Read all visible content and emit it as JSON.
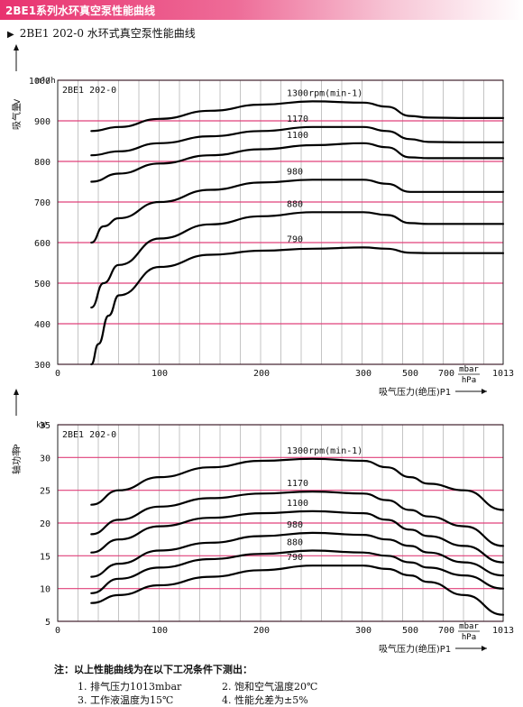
{
  "header": {
    "title": "2BE1系列水环真空泵性能曲线"
  },
  "subtitle": {
    "marker": "▶",
    "text": "2BE1 202-0 水环式真空泵性能曲线"
  },
  "colors": {
    "grid_h": "#e0407a",
    "grid_v": "#888888",
    "curve": "#000000",
    "header": "#e8326f"
  },
  "chart_data": [
    {
      "type": "line",
      "title": "2BE1 202-0",
      "ylabel": "吸气量",
      "ylabel_symbol": "V",
      "yunit": "m³/h",
      "xlabel": "吸气压力(绝压)P1",
      "xunit_top": "mbar",
      "xunit_bottom": "hPa",
      "ylim": [
        300,
        1000
      ],
      "yticks": [
        "300",
        "400",
        "500",
        "600",
        "700",
        "800",
        "900",
        "1000"
      ],
      "xticks": [
        "0",
        "100",
        "200",
        "300",
        "500",
        "700",
        "1013"
      ],
      "grid": true,
      "series": [
        {
          "name": "1300rpm(min-1)",
          "points": [
            [
              33,
              875
            ],
            [
              60,
              885
            ],
            [
              100,
              905
            ],
            [
              150,
              925
            ],
            [
              200,
              940
            ],
            [
              250,
              948
            ],
            [
              300,
              945
            ],
            [
              400,
              935
            ],
            [
              500,
              912
            ],
            [
              600,
              908
            ],
            [
              800,
              907
            ],
            [
              1013,
              907
            ]
          ]
        },
        {
          "name": "1170",
          "points": [
            [
              33,
              815
            ],
            [
              60,
              825
            ],
            [
              100,
              845
            ],
            [
              150,
              862
            ],
            [
              200,
              875
            ],
            [
              250,
              885
            ],
            [
              300,
              885
            ],
            [
              400,
              875
            ],
            [
              500,
              855
            ],
            [
              600,
              848
            ],
            [
              800,
              847
            ],
            [
              1013,
              847
            ]
          ]
        },
        {
          "name": "1100",
          "points": [
            [
              33,
              750
            ],
            [
              60,
              770
            ],
            [
              100,
              795
            ],
            [
              150,
              815
            ],
            [
              200,
              830
            ],
            [
              250,
              840
            ],
            [
              300,
              845
            ],
            [
              400,
              835
            ],
            [
              500,
              810
            ],
            [
              600,
              808
            ],
            [
              800,
              808
            ],
            [
              1013,
              808
            ]
          ]
        },
        {
          "name": "980",
          "points": [
            [
              33,
              600
            ],
            [
              45,
              640
            ],
            [
              60,
              660
            ],
            [
              100,
              700
            ],
            [
              150,
              730
            ],
            [
              200,
              748
            ],
            [
              250,
              755
            ],
            [
              300,
              755
            ],
            [
              400,
              745
            ],
            [
              500,
              725
            ],
            [
              600,
              725
            ],
            [
              800,
              725
            ],
            [
              1013,
              725
            ]
          ]
        },
        {
          "name": "880",
          "points": [
            [
              33,
              440
            ],
            [
              45,
              500
            ],
            [
              60,
              545
            ],
            [
              100,
              610
            ],
            [
              150,
              645
            ],
            [
              200,
              665
            ],
            [
              250,
              675
            ],
            [
              300,
              675
            ],
            [
              400,
              668
            ],
            [
              500,
              648
            ],
            [
              600,
              646
            ],
            [
              800,
              646
            ],
            [
              1013,
              646
            ]
          ]
        },
        {
          "name": "790",
          "points": [
            [
              33,
              300
            ],
            [
              40,
              350
            ],
            [
              50,
              420
            ],
            [
              60,
              470
            ],
            [
              100,
              540
            ],
            [
              150,
              570
            ],
            [
              200,
              580
            ],
            [
              250,
              585
            ],
            [
              300,
              588
            ],
            [
              400,
              585
            ],
            [
              500,
              575
            ],
            [
              600,
              574
            ],
            [
              800,
              574
            ],
            [
              1013,
              574
            ]
          ]
        }
      ]
    },
    {
      "type": "line",
      "title": "2BE1 202-0",
      "ylabel": "轴功率",
      "ylabel_symbol": "P",
      "yunit": "kW",
      "xlabel": "吸气压力(绝压)P1",
      "xunit_top": "mbar",
      "xunit_bottom": "hPa",
      "ylim": [
        5,
        35
      ],
      "yticks": [
        "5",
        "10",
        "15",
        "20",
        "25",
        "30",
        "35"
      ],
      "xticks": [
        "0",
        "100",
        "200",
        "300",
        "500",
        "700",
        "1013"
      ],
      "grid": true,
      "series": [
        {
          "name": "1300rpm(min-1)",
          "points": [
            [
              33,
              22.8
            ],
            [
              60,
              25
            ],
            [
              100,
              27
            ],
            [
              150,
              28.5
            ],
            [
              200,
              29.5
            ],
            [
              250,
              29.8
            ],
            [
              300,
              29.5
            ],
            [
              400,
              28.5
            ],
            [
              500,
              27
            ],
            [
              600,
              26
            ],
            [
              800,
              25
            ],
            [
              1013,
              22
            ]
          ]
        },
        {
          "name": "1170",
          "points": [
            [
              33,
              18.3
            ],
            [
              60,
              20.5
            ],
            [
              100,
              22.5
            ],
            [
              150,
              23.8
            ],
            [
              200,
              24.5
            ],
            [
              250,
              24.8
            ],
            [
              300,
              24.5
            ],
            [
              400,
              23.5
            ],
            [
              500,
              22
            ],
            [
              600,
              21
            ],
            [
              800,
              19.5
            ],
            [
              1013,
              16.5
            ]
          ]
        },
        {
          "name": "1100",
          "points": [
            [
              33,
              15.5
            ],
            [
              60,
              17.5
            ],
            [
              100,
              19.5
            ],
            [
              150,
              20.8
            ],
            [
              200,
              21.5
            ],
            [
              250,
              21.8
            ],
            [
              300,
              21.5
            ],
            [
              400,
              20.5
            ],
            [
              500,
              19
            ],
            [
              600,
              18
            ],
            [
              800,
              16.5
            ],
            [
              1013,
              14
            ]
          ]
        },
        {
          "name": "980",
          "points": [
            [
              33,
              11.8
            ],
            [
              60,
              13.8
            ],
            [
              100,
              15.8
            ],
            [
              150,
              17
            ],
            [
              200,
              18
            ],
            [
              250,
              18.5
            ],
            [
              300,
              18.2
            ],
            [
              400,
              17.5
            ],
            [
              500,
              16.5
            ],
            [
              600,
              15.5
            ],
            [
              800,
              14
            ],
            [
              1013,
              12
            ]
          ]
        },
        {
          "name": "880",
          "points": [
            [
              33,
              9.3
            ],
            [
              60,
              11.5
            ],
            [
              100,
              13.2
            ],
            [
              150,
              14.5
            ],
            [
              200,
              15.3
            ],
            [
              250,
              15.8
            ],
            [
              300,
              15.5
            ],
            [
              400,
              15
            ],
            [
              500,
              14
            ],
            [
              600,
              13.2
            ],
            [
              800,
              12
            ],
            [
              1013,
              10
            ]
          ]
        },
        {
          "name": "790",
          "points": [
            [
              33,
              7.8
            ],
            [
              60,
              9
            ],
            [
              100,
              10.5
            ],
            [
              150,
              11.8
            ],
            [
              200,
              12.8
            ],
            [
              250,
              13.5
            ],
            [
              300,
              13.5
            ],
            [
              400,
              13
            ],
            [
              500,
              12
            ],
            [
              600,
              11
            ],
            [
              800,
              9
            ],
            [
              1013,
              6
            ]
          ]
        }
      ]
    }
  ],
  "notes": {
    "intro": "注：以上性能曲线为在以下工况条件下测出：",
    "items": [
      "1. 排气压力1013mbar",
      "2. 饱和空气温度20℃",
      "3. 工作液温度为15℃",
      "4. 性能允差为±5%"
    ]
  }
}
